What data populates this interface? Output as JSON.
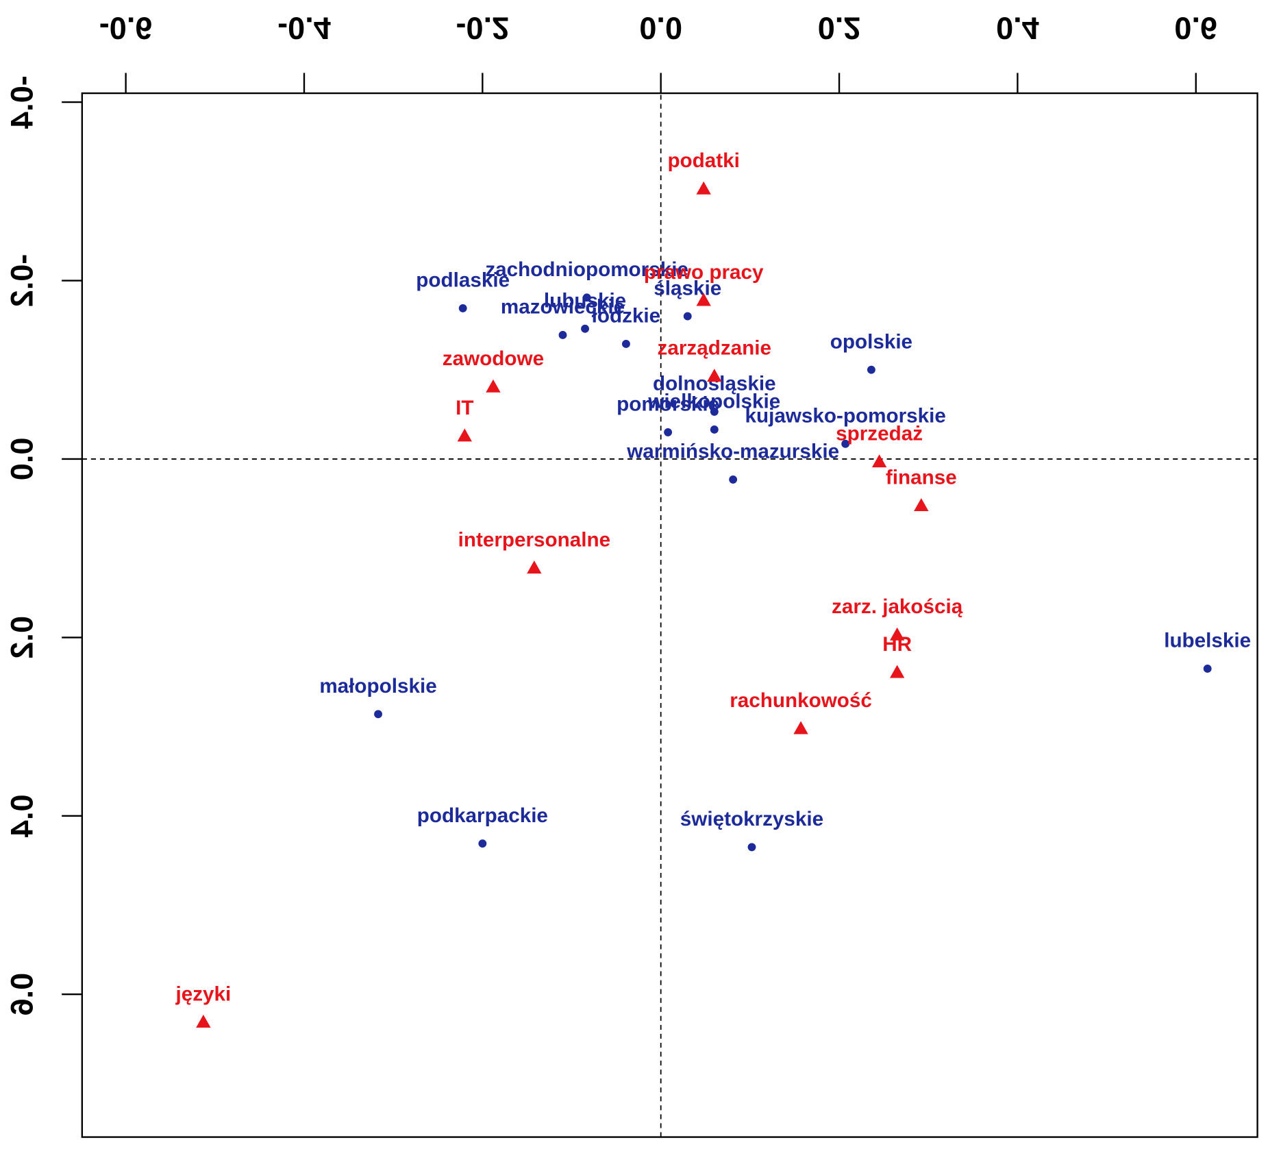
{
  "chart_data": {
    "type": "scatter",
    "xlim": [
      -0.649,
      0.669
    ],
    "ylim": [
      -0.41,
      0.76
    ],
    "xticks": [
      -0.6,
      -0.4,
      -0.2,
      {
        "value": 0,
        "label": "0.0"
      },
      0.2,
      0.4,
      0.6
    ],
    "yticks": [
      -0.4,
      -0.2,
      {
        "value": 0,
        "label": "0.0"
      },
      0.2,
      0.4,
      0.6
    ],
    "reference_lines": true,
    "flipped_vertically": true,
    "series": [
      {
        "marker": "circle",
        "color": "#1c2a9a",
        "labels": [
          "zachodniopomorskie",
          "podlaskie",
          "mazowieckie",
          "lubuskie",
          "łódzkie",
          "śląskie",
          "opolskie",
          "dolnośląskie",
          "pomorskie",
          "wielkopolskie",
          "kujawsko-pomorskie",
          "warmińsko-mazurskie",
          "lubelskie",
          "małopolskie",
          "podkarpackie",
          "świętokrzyskie"
        ],
        "x": [
          -0.083,
          -0.222,
          -0.11,
          -0.085,
          -0.039,
          0.03,
          0.236,
          0.06,
          0.008,
          0.06,
          0.207,
          0.081,
          0.613,
          -0.317,
          -0.2,
          0.102
        ],
        "y": [
          -0.181,
          -0.169,
          -0.139,
          -0.146,
          -0.129,
          -0.16,
          -0.1,
          -0.053,
          -0.03,
          -0.033,
          -0.017,
          0.023,
          0.235,
          0.286,
          0.431,
          0.435
        ]
      },
      {
        "marker": "triangle",
        "color": "#e8141b",
        "labels": [
          "podatki",
          "prawo pracy",
          "zarządzanie",
          "zawodowe",
          "IT",
          "sprzedaż",
          "finanse",
          "interpersonalne",
          "zarz. jakością",
          "HR",
          "rachunkowość",
          "języki"
        ],
        "x": [
          0.048,
          0.048,
          0.06,
          -0.188,
          -0.22,
          0.245,
          0.292,
          -0.142,
          0.265,
          0.265,
          0.157,
          -0.513
        ],
        "y": [
          -0.303,
          -0.178,
          -0.093,
          -0.081,
          -0.026,
          0.003,
          0.052,
          0.122,
          0.197,
          0.239,
          0.302,
          0.631
        ]
      }
    ]
  }
}
